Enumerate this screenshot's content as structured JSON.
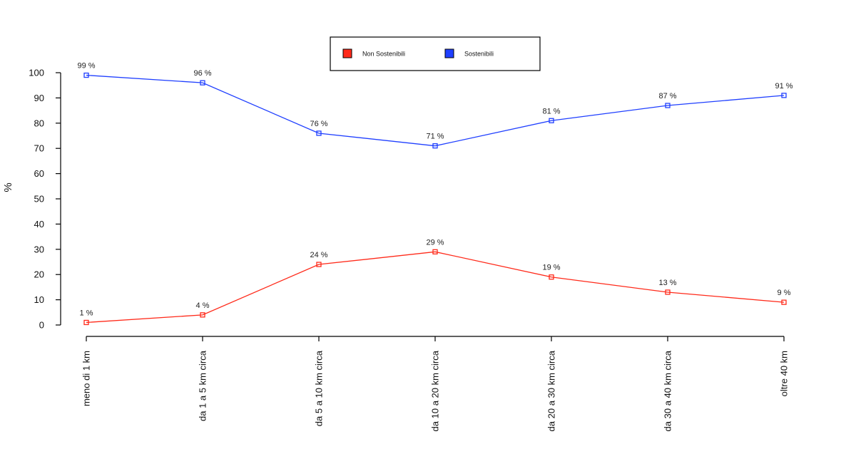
{
  "chart_data": {
    "type": "line",
    "title": "",
    "xlabel": "",
    "ylabel": "%",
    "ylim": [
      0,
      100
    ],
    "yticks": [
      0,
      10,
      20,
      30,
      40,
      50,
      60,
      70,
      80,
      90,
      100
    ],
    "categories": [
      "meno di 1 km",
      "da 1 a 5 km circa",
      "da 5 a 10 km circa",
      "da 10 a 20 km circa",
      "da 20 a 30 km circa",
      "da 30 a 40 km circa",
      "oltre 40 km"
    ],
    "series": [
      {
        "name": "Non Sostenibili",
        "color": "#ff2a1a",
        "values": [
          1,
          4,
          24,
          29,
          19,
          13,
          9
        ],
        "labels": [
          "1 %",
          "4 %",
          "24 %",
          "29 %",
          "19 %",
          "13 %",
          "9 %"
        ]
      },
      {
        "name": "Sostenibili",
        "color": "#1f3fff",
        "values": [
          99,
          96,
          76,
          71,
          81,
          87,
          91
        ],
        "labels": [
          "99 %",
          "96 %",
          "76 %",
          "71 %",
          "81 %",
          "87 %",
          "91 %"
        ]
      }
    ],
    "legend": {
      "position": "top-center"
    },
    "grid": false
  }
}
